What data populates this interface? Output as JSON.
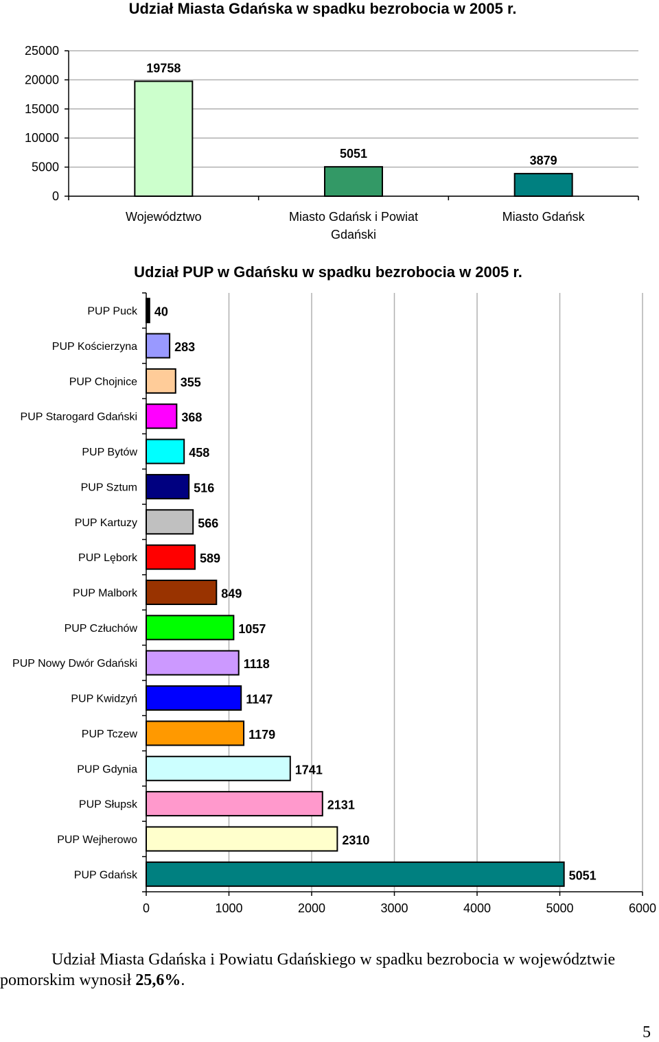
{
  "chart_data": [
    {
      "type": "bar",
      "title": "Udział Miasta Gdańska w spadku bezrobocia w 2005 r.",
      "categories": [
        "Województwo",
        "Miasto Gdańsk i Powiat Gdański",
        "Miasto Gdańsk"
      ],
      "category_lines": [
        [
          "Województwo"
        ],
        [
          "Miasto Gdańsk i Powiat",
          "Gdański"
        ],
        [
          "Miasto Gdańsk"
        ]
      ],
      "values": [
        19758,
        5051,
        3879
      ],
      "colors": [
        "#ccffcc",
        "#339966",
        "#008080"
      ],
      "ylim": [
        0,
        25000
      ],
      "yticks": [
        0,
        5000,
        10000,
        15000,
        20000,
        25000
      ],
      "grid": true,
      "data_labels": true
    },
    {
      "type": "bar",
      "orientation": "horizontal",
      "title": "Udział PUP w Gdańsku w spadku bezrobocia w 2005 r.",
      "categories": [
        "PUP Puck",
        "PUP Kościerzyna",
        "PUP Chojnice",
        "PUP Starogard Gdański",
        "PUP Bytów",
        "PUP Sztum",
        "PUP Kartuzy",
        "PUP Lębork",
        "PUP Malbork",
        "PUP Człuchów",
        "PUP Nowy Dwór Gdański",
        "PUP Kwidzyń",
        "PUP Tczew",
        "PUP Gdynia",
        "PUP Słupsk",
        "PUP Wejherowo",
        "PUP Gdańsk"
      ],
      "values": [
        40,
        283,
        355,
        368,
        458,
        516,
        566,
        589,
        849,
        1057,
        1118,
        1147,
        1179,
        1741,
        2131,
        2310,
        5051
      ],
      "colors": [
        "#000000",
        "#9999ff",
        "#ffcc99",
        "#ff00ff",
        "#00ffff",
        "#000080",
        "#c0c0c0",
        "#ff0000",
        "#993300",
        "#00ff00",
        "#cc99ff",
        "#0000ff",
        "#ff9900",
        "#ccffff",
        "#ff99cc",
        "#ffffcc",
        "#008080"
      ],
      "xlim": [
        0,
        6000
      ],
      "xticks": [
        0,
        1000,
        2000,
        3000,
        4000,
        5000,
        6000
      ],
      "grid": true,
      "data_labels": true
    }
  ],
  "text": {
    "paragraph": "Udział Miasta Gdańska i Powiatu Gdańskiego w spadku bezrobocia w województwie pomorskim wynosił ",
    "paragraph_bold": "25,6%",
    "paragraph_end": ".",
    "page_number": "5"
  }
}
